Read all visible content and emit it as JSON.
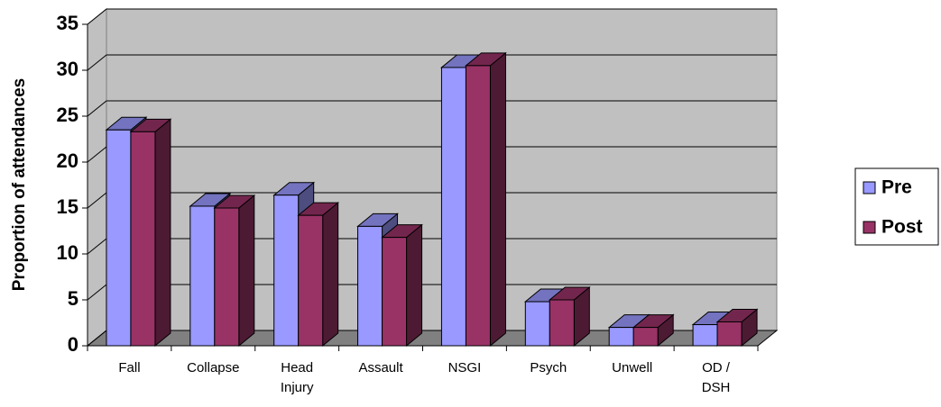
{
  "chart_data": {
    "type": "bar3d",
    "y_label": "Proportion of attendances",
    "categories": [
      "Fall",
      "Collapse",
      "Head Injury",
      "Assault",
      "NSGI",
      "Psych",
      "Unwell",
      "OD / DSH"
    ],
    "series": [
      {
        "name": "Pre",
        "color": "#9999ff",
        "values": [
          23.5,
          15.2,
          16.4,
          13.0,
          30.3,
          4.8,
          2.0,
          2.3
        ]
      },
      {
        "name": "Post",
        "color": "#993366",
        "values": [
          23.3,
          15.0,
          14.2,
          11.8,
          30.5,
          5.0,
          2.0,
          2.6
        ]
      }
    ],
    "ylim": [
      0,
      35
    ],
    "yticks": [
      0,
      5,
      10,
      15,
      20,
      25,
      30,
      35
    ],
    "grid": true,
    "legend": "right"
  }
}
